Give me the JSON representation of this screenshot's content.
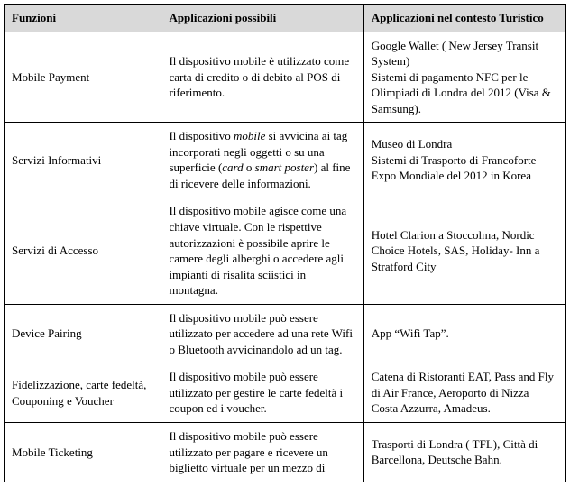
{
  "table": {
    "header_bg": "#d9d9d9",
    "border_color": "#000000",
    "font_family": "Times New Roman",
    "base_font_size": 13,
    "columns": [
      {
        "label": "Funzioni",
        "width_pct": 28
      },
      {
        "label": "Applicazioni possibili",
        "width_pct": 36
      },
      {
        "label": "Applicazioni nel contesto Turistico",
        "width_pct": 36
      }
    ],
    "rows": [
      {
        "funzione": "Mobile Payment",
        "applicazioni_html": "Il dispositivo mobile è utilizzato come carta di credito o di debito al POS di riferimento.",
        "contesto": "Google Wallet ( New Jersey Transit System)\nSistemi di pagamento NFC per le Olimpiadi di Londra del 2012 (Visa & Samsung)."
      },
      {
        "funzione": "Servizi Informativi",
        "applicazioni_html": "Il dispositivo <span class=\"i\">mobile</span> si avvicina ai tag incorporati negli oggetti o su una superficie (<span class=\"i\">card</span> o <span class=\"i\">smart poster</span>) al fine di ricevere delle informazioni.",
        "contesto": "Museo di Londra\nSistemi di Trasporto di Francoforte\nExpo Mondiale del 2012 in Korea"
      },
      {
        "funzione": "Servizi di Accesso",
        "applicazioni_html": "Il dispositivo mobile agisce come una chiave virtuale. Con le rispettive autorizzazioni è possibile aprire le camere degli alberghi o accedere agli impianti di risalita sciistici in montagna.",
        "contesto": "Hotel Clarion a Stoccolma, Nordic Choice Hotels, SAS, Holiday- Inn a Stratford City"
      },
      {
        "funzione": "Device Pairing",
        "applicazioni_html": "Il dispositivo mobile può essere utilizzato per accedere ad una rete Wifi o Bluetooth avvicinandolo ad un tag.",
        "contesto": "App “Wifi Tap”."
      },
      {
        "funzione": "Fidelizzazione, carte fedeltà, Couponing e Voucher",
        "applicazioni_html": "Il dispositivo mobile può essere utilizzato per gestire le carte fedeltà i coupon ed i voucher.",
        "contesto": "Catena di Ristoranti EAT, Pass and Fly di Air France, Aeroporto di Nizza Costa Azzurra, Amadeus."
      },
      {
        "funzione": "Mobile Ticketing",
        "applicazioni_html": "Il dispositivo mobile può essere utilizzato per pagare e ricevere un biglietto virtuale per un mezzo di",
        "contesto": "Trasporti di Londra ( TFL), Città di Barcellona, Deutsche Bahn."
      }
    ]
  }
}
